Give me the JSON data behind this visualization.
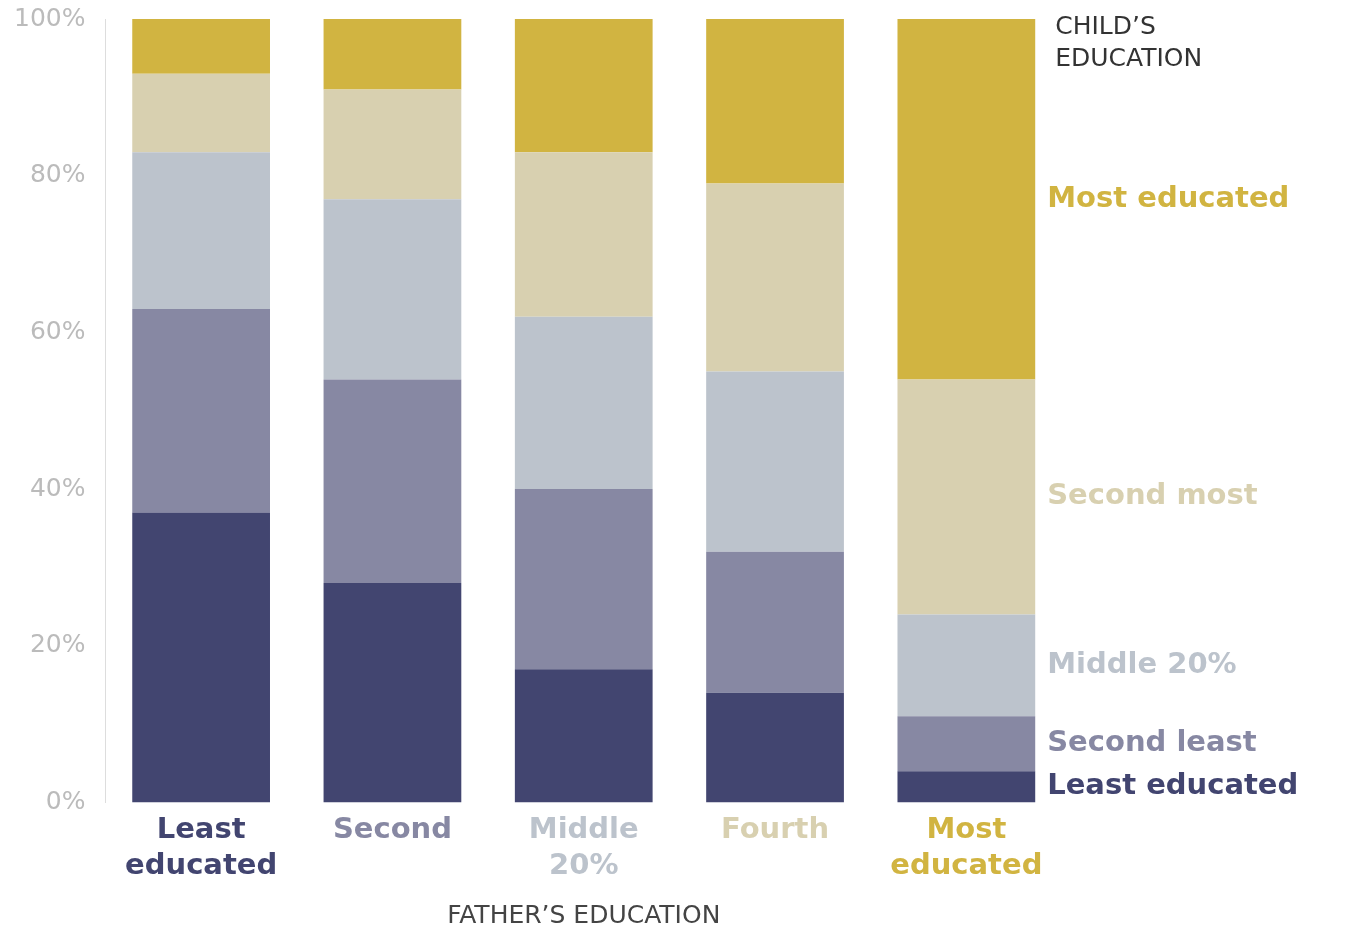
{
  "chart_data": {
    "type": "bar",
    "stacked": true,
    "xlabel": "FATHER’S EDUCATION",
    "legend_title": "CHILD’S EDUCATION",
    "legend": "right",
    "grid": false,
    "categories": [
      "Least educated",
      "Second",
      "Middle 20%",
      "Fourth",
      "Most educated"
    ],
    "ylim": [
      0,
      100
    ],
    "yticks": [
      {
        "value": 0,
        "label": "0%"
      },
      {
        "value": 20,
        "label": "20%"
      },
      {
        "value": 40,
        "label": "40%"
      },
      {
        "value": 60,
        "label": "60%"
      },
      {
        "value": 80,
        "label": "80%"
      },
      {
        "value": 100,
        "label": "100%"
      }
    ],
    "series": [
      {
        "name": "Least educated",
        "color": "#424570",
        "values": [
          37,
          28,
          17,
          14,
          4
        ]
      },
      {
        "name": "Second least",
        "color": "#8788a3",
        "values": [
          26,
          26,
          23,
          18,
          7
        ]
      },
      {
        "name": "Middle 20%",
        "color": "#bcc3cc",
        "values": [
          20,
          23,
          22,
          23,
          13
        ]
      },
      {
        "name": "Second most",
        "color": "#d8d0b0",
        "values": [
          10,
          14,
          21,
          24,
          30
        ]
      },
      {
        "name": "Most educated",
        "color": "#d1b441",
        "values": [
          7,
          9,
          17,
          21,
          46
        ]
      }
    ]
  }
}
